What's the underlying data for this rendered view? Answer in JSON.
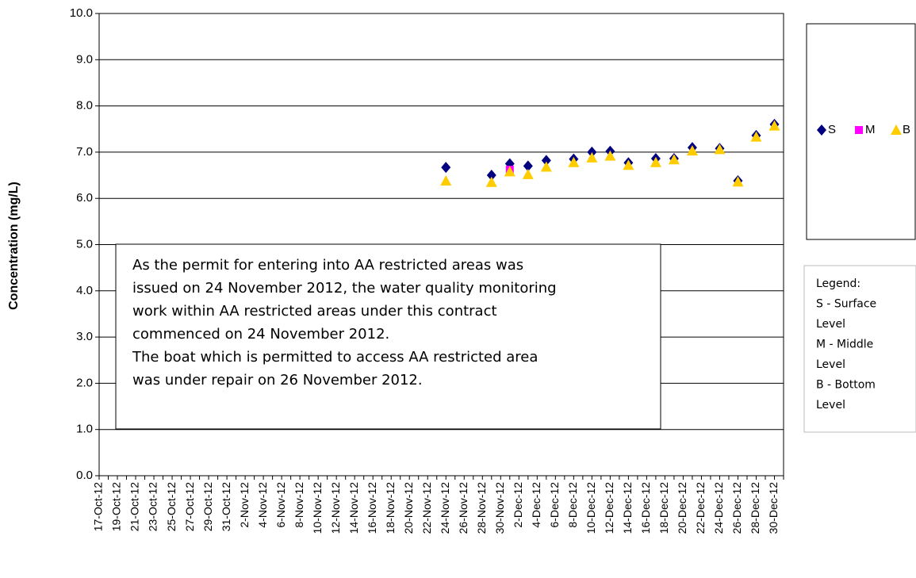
{
  "chart_data": {
    "type": "scatter",
    "y_label": "Concentration (mg/L)",
    "categories": [
      "17-Oct-12",
      null,
      "19-Oct-12",
      null,
      "21-Oct-12",
      null,
      "23-Oct-12",
      null,
      "25-Oct-12",
      null,
      "27-Oct-12",
      null,
      "29-Oct-12",
      null,
      "31-Oct-12",
      null,
      "2-Nov-12",
      null,
      "4-Nov-12",
      null,
      "6-Nov-12",
      null,
      "8-Nov-12",
      null,
      "10-Nov-12",
      null,
      "12-Nov-12",
      null,
      "14-Nov-12",
      null,
      "16-Nov-12",
      null,
      "18-Nov-12",
      null,
      "20-Nov-12",
      null,
      "22-Nov-12",
      null,
      "24-Nov-12",
      null,
      "26-Nov-12",
      null,
      "28-Nov-12",
      null,
      "30-Nov-12",
      null,
      "2-Dec-12",
      null,
      "4-Dec-12",
      null,
      "6-Dec-12",
      null,
      "8-Dec-12",
      null,
      "10-Dec-12",
      null,
      "12-Dec-12",
      null,
      "14-Dec-12",
      null,
      "16-Dec-12",
      null,
      "18-Dec-12",
      null,
      "20-Dec-12",
      null,
      "22-Dec-12",
      null,
      "24-Dec-12",
      null,
      "26-Dec-12",
      null,
      "28-Dec-12",
      null,
      "30-Dec-12",
      null
    ],
    "series": [
      {
        "name": "S",
        "color": "#000080",
        "marker": "diamond",
        "values": [
          null,
          null,
          null,
          null,
          null,
          null,
          null,
          null,
          null,
          null,
          null,
          null,
          null,
          null,
          null,
          null,
          null,
          null,
          null,
          null,
          null,
          null,
          null,
          null,
          null,
          null,
          null,
          null,
          null,
          null,
          null,
          null,
          null,
          null,
          null,
          null,
          null,
          null,
          6.67,
          null,
          null,
          null,
          null,
          6.5,
          null,
          6.75,
          null,
          6.7,
          null,
          6.82,
          null,
          null,
          6.85,
          null,
          7.0,
          null,
          7.02,
          null,
          6.77,
          null,
          null,
          6.86,
          null,
          6.86,
          null,
          7.1,
          null,
          null,
          7.08,
          null,
          6.38,
          null,
          7.36,
          null,
          7.6,
          null
        ]
      },
      {
        "name": "M",
        "color": "#ff00ff",
        "marker": "square",
        "values": [
          null,
          null,
          null,
          null,
          null,
          null,
          null,
          null,
          null,
          null,
          null,
          null,
          null,
          null,
          null,
          null,
          null,
          null,
          null,
          null,
          null,
          null,
          null,
          null,
          null,
          null,
          null,
          null,
          null,
          null,
          null,
          null,
          null,
          null,
          null,
          null,
          null,
          null,
          null,
          null,
          null,
          null,
          null,
          null,
          null,
          6.62,
          null,
          null,
          null,
          null,
          null,
          null,
          null,
          null,
          null,
          null,
          null,
          null,
          null,
          null,
          null,
          null,
          null,
          null,
          null,
          null,
          null,
          null,
          null,
          null,
          null,
          null,
          null,
          null,
          null,
          null
        ]
      },
      {
        "name": "B",
        "color": "#ffcc00",
        "marker": "triangle",
        "values": [
          null,
          null,
          null,
          null,
          null,
          null,
          null,
          null,
          null,
          null,
          null,
          null,
          null,
          null,
          null,
          null,
          null,
          null,
          null,
          null,
          null,
          null,
          null,
          null,
          null,
          null,
          null,
          null,
          null,
          null,
          null,
          null,
          null,
          null,
          null,
          null,
          null,
          null,
          6.38,
          null,
          null,
          null,
          null,
          6.35,
          null,
          6.58,
          null,
          6.52,
          null,
          6.68,
          null,
          null,
          6.78,
          null,
          6.88,
          null,
          6.92,
          null,
          6.72,
          null,
          null,
          6.78,
          null,
          6.84,
          null,
          7.03,
          null,
          null,
          7.06,
          null,
          6.36,
          null,
          7.33,
          null,
          7.57,
          null
        ]
      }
    ],
    "ylim": [
      0,
      10
    ],
    "yticks": [
      {
        "value": 0,
        "label": "0.0"
      },
      {
        "value": 1,
        "label": "1.0"
      },
      {
        "value": 2,
        "label": "2.0"
      },
      {
        "value": 3,
        "label": "3.0"
      },
      {
        "value": 4,
        "label": "4.0"
      },
      {
        "value": 5,
        "label": "5.0"
      },
      {
        "value": 6,
        "label": "6.0"
      },
      {
        "value": 7,
        "label": "7.0"
      },
      {
        "value": 8,
        "label": "8.0"
      },
      {
        "value": 9,
        "label": "9.0"
      },
      {
        "value": 10,
        "label": "10.0"
      }
    ],
    "grid": true,
    "legend_position": "right",
    "annotation": [
      "As the permit for entering into AA restricted areas was",
      "issued on 24 November 2012, the water quality monitoring",
      "work within AA restricted areas under this contract",
      "commenced on 24 November 2012.",
      "The boat which is permitted to access AA restricted area",
      "was under repair on 26 November 2012."
    ],
    "legend_note": [
      "Legend:",
      "S - Surface",
      "Level",
      "M - Middle",
      "Level",
      "B - Bottom",
      "Level"
    ]
  }
}
